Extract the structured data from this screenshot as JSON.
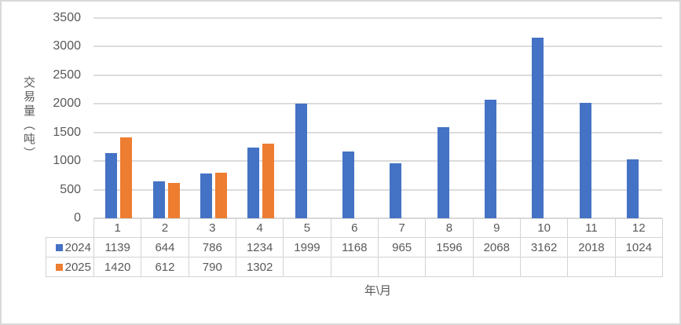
{
  "chart_data": {
    "type": "bar",
    "title": "",
    "xlabel": "年\\月",
    "ylabel": "交易量（吨）",
    "categories": [
      "1",
      "2",
      "3",
      "4",
      "5",
      "6",
      "7",
      "8",
      "9",
      "10",
      "11",
      "12"
    ],
    "series": [
      {
        "name": "2024",
        "color": "#4472C4",
        "values": [
          1139,
          644,
          786,
          1234,
          1999,
          1168,
          965,
          1596,
          2068,
          3162,
          2018,
          1024
        ]
      },
      {
        "name": "2025",
        "color": "#ED7D31",
        "values": [
          1420,
          612,
          790,
          1302,
          null,
          null,
          null,
          null,
          null,
          null,
          null,
          null
        ]
      }
    ],
    "ylim": [
      0,
      3500
    ],
    "yticks": [
      0,
      500,
      1000,
      1500,
      2000,
      2500,
      3000,
      3500
    ],
    "grid": true,
    "legend_position": "data-table-left",
    "data_table": true,
    "colors": {
      "grid": "#dcdcdc",
      "axis_text": "#595959",
      "table_border": "#d4d4d4",
      "chart_border": "#d9d9d9"
    }
  }
}
